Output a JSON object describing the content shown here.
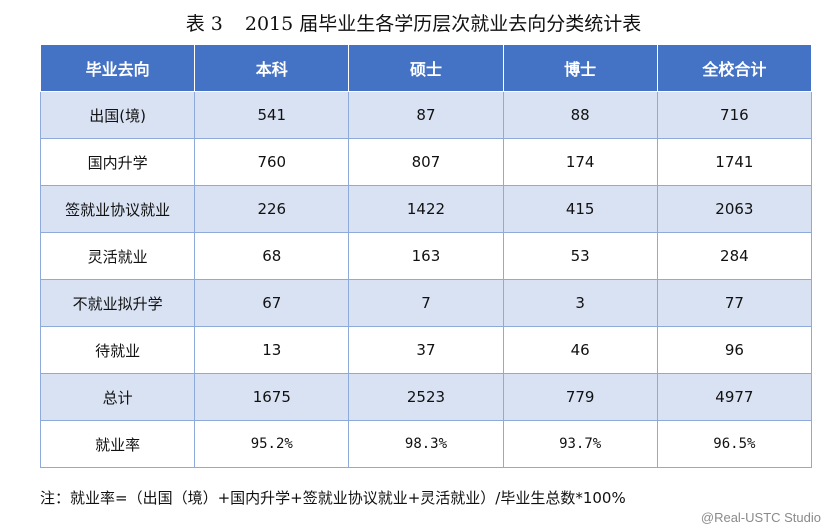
{
  "title": {
    "number": "表 3",
    "text": "2015 届毕业生各学历层次就业去向分类统计表"
  },
  "table": {
    "headers": [
      "毕业去向",
      "本科",
      "硕士",
      "博士",
      "全校合计"
    ],
    "rows": [
      [
        "出国(境)",
        "541",
        "87",
        "88",
        "716"
      ],
      [
        "国内升学",
        "760",
        "807",
        "174",
        "1741"
      ],
      [
        "签就业协议就业",
        "226",
        "1422",
        "415",
        "2063"
      ],
      [
        "灵活就业",
        "68",
        "163",
        "53",
        "284"
      ],
      [
        "不就业拟升学",
        "67",
        "7",
        "3",
        "77"
      ],
      [
        "待就业",
        "13",
        "37",
        "46",
        "96"
      ],
      [
        "总计",
        "1675",
        "2523",
        "779",
        "4977"
      ],
      [
        "就业率",
        "95.2%",
        "98.3%",
        "93.7%",
        "96.5%"
      ]
    ]
  },
  "note": "注：就业率=（出国（境）+国内升学+签就业协议就业+灵活就业）/毕业生总数*100%",
  "watermark": "@Real-USTC Studio",
  "colors": {
    "header_bg": "#4472c4",
    "stripe_bg": "#d9e2f3",
    "border": "#8eaadb"
  }
}
